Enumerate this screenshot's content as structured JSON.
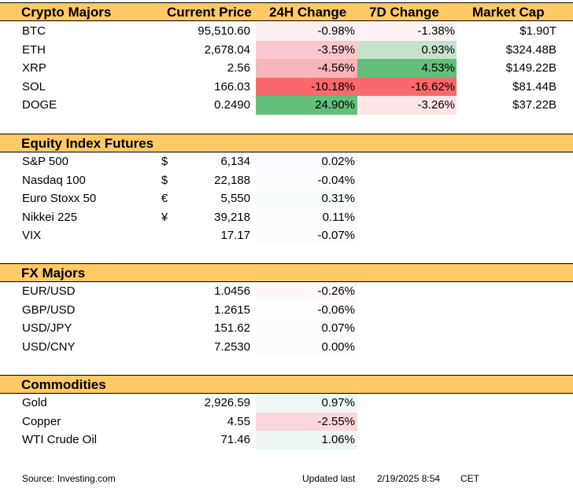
{
  "headers": {
    "crypto": [
      "Crypto Majors",
      "Current Price",
      "24H Change",
      "7D Change",
      "Market Cap"
    ],
    "equity": "Equity Index Futures",
    "fx": "FX Majors",
    "commodities": "Commodities"
  },
  "crypto": [
    {
      "name": "BTC",
      "price": "95,510.60",
      "d24": "-0.98%",
      "d7": "-1.38%",
      "cap": "$1.90T",
      "c24": "#fdeef0",
      "c7": "#fdf3f4"
    },
    {
      "name": "ETH",
      "price": "2,678.04",
      "d24": "-3.59%",
      "d7": "0.93%",
      "cap": "$324.48B",
      "c24": "#f9c7cc",
      "c7": "#c4e3c9"
    },
    {
      "name": "XRP",
      "price": "2.56",
      "d24": "-4.56%",
      "d7": "4.53%",
      "cap": "$149.22B",
      "c24": "#f8b5bb",
      "c7": "#63be7b"
    },
    {
      "name": "SOL",
      "price": "166.03",
      "d24": "-10.18%",
      "d7": "-16.62%",
      "cap": "$81.44B",
      "c24": "#f8696b",
      "c7": "#f8696b"
    },
    {
      "name": "DOGE",
      "price": "0.2490",
      "d24": "24.90%",
      "d7": "-3.26%",
      "cap": "$37.22B",
      "c24": "#63be7b",
      "c7": "#fce4e7"
    }
  ],
  "equity": [
    {
      "name": "S&P 500",
      "cur": "$",
      "price": "6,134",
      "d24": "0.02%",
      "c24": "#fbfcff"
    },
    {
      "name": "Nasdaq 100",
      "cur": "$",
      "price": "22,188",
      "d24": "-0.04%",
      "c24": "#fcfcff"
    },
    {
      "name": "Euro Stoxx 50",
      "cur": "€",
      "price": "5,550",
      "d24": "0.31%",
      "c24": "#f7fbfa"
    },
    {
      "name": "Nikkei 225",
      "cur": "¥",
      "price": "39,218",
      "d24": "0.11%",
      "c24": "#fafcfe"
    },
    {
      "name": "VIX",
      "cur": "",
      "price": "17.17",
      "d24": "-0.07%",
      "c24": "#fcfcff"
    }
  ],
  "fx": [
    {
      "name": "EUR/USD",
      "price": "1.0456",
      "d24": "-0.26%",
      "c24": "#fef8fa"
    },
    {
      "name": "GBP/USD",
      "price": "1.2615",
      "d24": "-0.06%",
      "c24": "#fdfcff"
    },
    {
      "name": "USD/JPY",
      "price": "151.62",
      "d24": "0.07%",
      "c24": "#fafcfe"
    },
    {
      "name": "USD/CNY",
      "price": "7.2530",
      "d24": "0.00%",
      "c24": "#fcfcff"
    }
  ],
  "commodities": [
    {
      "name": "Gold",
      "price": "2,926.59",
      "d24": "0.97%",
      "c24": "#eef7f1"
    },
    {
      "name": "Copper",
      "price": "4.55",
      "d24": "-2.55%",
      "c24": "#fbd6da"
    },
    {
      "name": "WTI Crude Oil",
      "price": "71.46",
      "d24": "1.06%",
      "c24": "#edf6f0"
    }
  ],
  "footer": {
    "source": "Source: Investing.com",
    "updated_label": "Updated last",
    "datetime": "2/19/2025 8:54",
    "tz": "CET"
  }
}
